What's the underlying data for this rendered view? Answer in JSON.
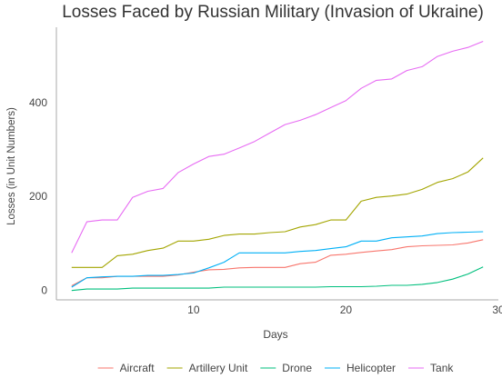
{
  "chart_data": {
    "type": "line",
    "title": "Losses Faced by Russian Military (Invasion of Ukraine)",
    "xlabel": "Days",
    "ylabel": "Losses (in Unit Numbers)",
    "xlim": [
      1,
      30
    ],
    "ylim": [
      -20,
      560
    ],
    "xticks": [
      10,
      20,
      30
    ],
    "yticks": [
      0,
      200,
      400
    ],
    "grid": false,
    "legend_position": "bottom",
    "x": [
      2,
      3,
      4,
      5,
      6,
      7,
      8,
      9,
      10,
      11,
      12,
      13,
      14,
      15,
      16,
      17,
      18,
      19,
      20,
      21,
      22,
      23,
      24,
      25,
      26,
      27,
      28,
      29
    ],
    "series": [
      {
        "name": "Aircraft",
        "color": "#F8766D",
        "values": [
          10,
          27,
          27,
          30,
          30,
          30,
          30,
          33,
          39,
          44,
          45,
          48,
          49,
          49,
          49,
          57,
          60,
          75,
          77,
          81,
          84,
          87,
          93,
          95,
          96,
          97,
          101,
          108
        ]
      },
      {
        "name": "Artillery Unit",
        "color": "#A3A500",
        "values": [
          49,
          49,
          49,
          74,
          77,
          85,
          90,
          105,
          105,
          109,
          117,
          120,
          120,
          123,
          125,
          135,
          140,
          150,
          150,
          190,
          198,
          201,
          205,
          215,
          230,
          238,
          252,
          282
        ]
      },
      {
        "name": "Drone",
        "color": "#00BF7D",
        "values": [
          0,
          3,
          3,
          3,
          5,
          5,
          5,
          5,
          5,
          5,
          7,
          7,
          7,
          7,
          7,
          7,
          7,
          8,
          8,
          8,
          9,
          11,
          11,
          13,
          17,
          24,
          35,
          50
        ]
      },
      {
        "name": "Helicopter",
        "color": "#00B0F6",
        "values": [
          7,
          27,
          29,
          30,
          30,
          32,
          32,
          34,
          37,
          48,
          60,
          80,
          80,
          80,
          80,
          83,
          85,
          89,
          93,
          105,
          105,
          112,
          114,
          116,
          121,
          123,
          124,
          125
        ]
      },
      {
        "name": "Tank",
        "color": "#E76BF3",
        "values": [
          80,
          146,
          150,
          150,
          198,
          211,
          217,
          251,
          269,
          285,
          290,
          303,
          317,
          335,
          353,
          362,
          374,
          389,
          404,
          430,
          447,
          450,
          468,
          476,
          498,
          509,
          517,
          530
        ]
      }
    ]
  }
}
